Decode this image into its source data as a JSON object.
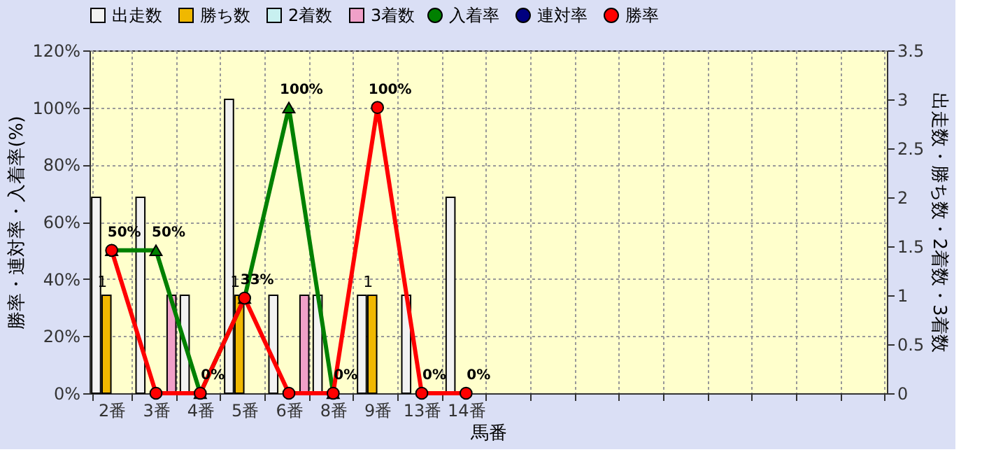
{
  "chart_data": {
    "type": "bar",
    "xlabel": "馬番",
    "ylabel": "勝率・連対率・入着率(%)",
    "y2label": "出走数・勝ち数・2着数・3着数",
    "categories": [
      "2番",
      "3番",
      "4番",
      "5番",
      "6番",
      "8番",
      "9番",
      "13番",
      "14番",
      null,
      null,
      null,
      null,
      null,
      null,
      null,
      null,
      null
    ],
    "series": [
      {
        "name": "出走数",
        "axis": "y2",
        "color": "#f2f2f2",
        "values": [
          2,
          2,
          1,
          3,
          1,
          1,
          1,
          1,
          2,
          null,
          null,
          null,
          null,
          null,
          null,
          null,
          null,
          null
        ]
      },
      {
        "name": "勝ち数",
        "axis": "y2",
        "color": "#f0b800",
        "values": [
          1,
          null,
          null,
          1,
          null,
          null,
          1,
          null,
          null,
          null,
          null,
          null,
          null,
          null,
          null,
          null,
          null,
          null
        ],
        "value_labels": [
          "1",
          null,
          null,
          "1",
          null,
          null,
          "1",
          null,
          null,
          null,
          null,
          null,
          null,
          null,
          null,
          null,
          null,
          null
        ]
      },
      {
        "name": "2着数",
        "axis": "y2",
        "color": "#c8f0f0",
        "values": [
          null,
          null,
          null,
          null,
          null,
          null,
          null,
          null,
          null,
          null,
          null,
          null,
          null,
          null,
          null,
          null,
          null,
          null
        ]
      },
      {
        "name": "3着数",
        "axis": "y2",
        "color": "#f0a0c8",
        "values": [
          null,
          1,
          null,
          null,
          1,
          null,
          null,
          null,
          null,
          null,
          null,
          null,
          null,
          null,
          null,
          null,
          null,
          null
        ]
      },
      {
        "name": "入着率",
        "type": "line",
        "color": "#008000",
        "marker": "triangle",
        "values": [
          50,
          50,
          0,
          33.3,
          100,
          0,
          null,
          null,
          null,
          null,
          null,
          null,
          null,
          null,
          null,
          null,
          null,
          null
        ],
        "value_labels": [
          "50%",
          "50%",
          "0%",
          "33%",
          "100%",
          "0%",
          null,
          null,
          null,
          null,
          null,
          null,
          null,
          null,
          null,
          null,
          null,
          null
        ]
      },
      {
        "name": "連対率",
        "type": "line",
        "color": "#000080",
        "marker": "diamond",
        "values": [
          null,
          null,
          null,
          null,
          null,
          null,
          null,
          null,
          null,
          null,
          null,
          null,
          null,
          null,
          null,
          null,
          null,
          null
        ]
      },
      {
        "name": "勝率",
        "type": "line",
        "color": "#ff0000",
        "marker": "circle",
        "values": [
          50,
          0,
          0,
          33.3,
          0,
          0,
          100,
          0,
          0,
          null,
          null,
          null,
          null,
          null,
          null,
          null,
          null,
          null
        ],
        "value_labels": [
          null,
          null,
          null,
          null,
          null,
          null,
          "100%",
          "0%",
          "0%",
          null,
          null,
          null,
          null,
          null,
          null,
          null,
          null,
          null
        ]
      }
    ],
    "ylim": [
      0,
      120
    ],
    "yticks": [
      {
        "value": 0,
        "label": "0%"
      },
      {
        "value": 20,
        "label": "20%"
      },
      {
        "value": 40,
        "label": "40%"
      },
      {
        "value": 60,
        "label": "60%"
      },
      {
        "value": 80,
        "label": "80%"
      },
      {
        "value": 100,
        "label": "100%"
      },
      {
        "value": 120,
        "label": "120%"
      }
    ],
    "y2lim": [
      0,
      3.5
    ],
    "y2ticks": [
      0,
      0.5,
      1,
      1.5,
      2,
      2.5,
      3,
      3.5
    ],
    "grid": true,
    "legend": "top",
    "line_style": "solid"
  }
}
